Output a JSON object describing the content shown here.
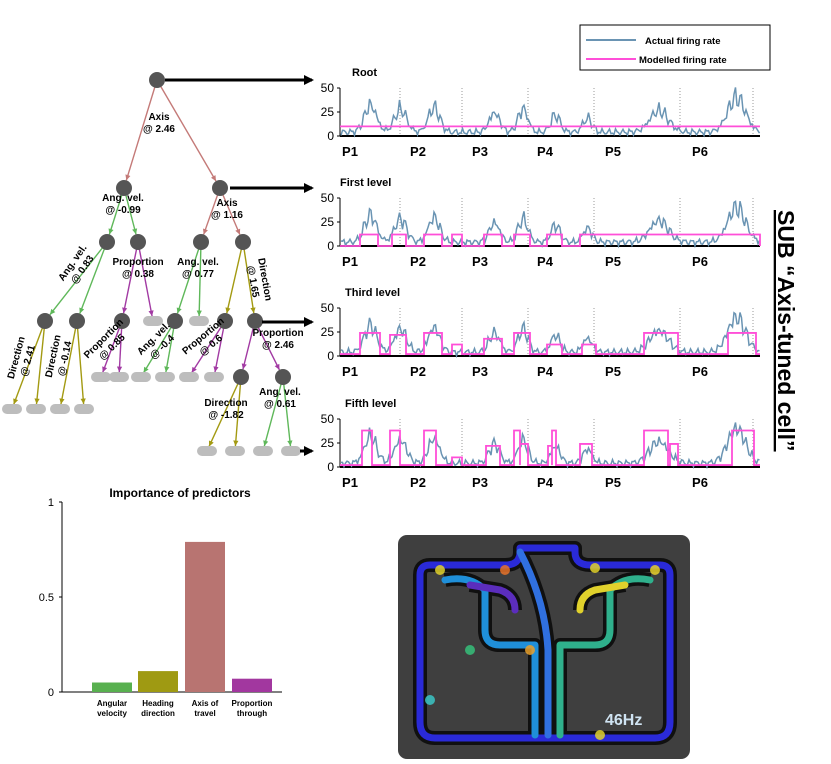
{
  "colors": {
    "actual": "#6a94b3",
    "modelled": "#ff4fd8",
    "axis_edge": "#c47a78",
    "angvel_edge": "#5fb85a",
    "direction_edge": "#a39a12",
    "proportion_edge": "#a23aa3",
    "node": "#555555",
    "leaf": "#bdbdbd",
    "bar_angular": "#58b04f",
    "bar_heading": "#9f9a12",
    "bar_axis": "#b87471",
    "bar_proportion": "#a2379f",
    "map_bg": "#3f3f3f"
  },
  "tree": {
    "root_split": "Axis\n@ 2.46",
    "split_left": "Ang. vel.\n@ -0.99",
    "split_right": "Axis\n@ 1.16",
    "split_ll": "Ang. vel.\n@ 0.83",
    "split_lr": "Proportion\n@ 0.38",
    "split_rl": "Ang. vel.\n@ 0.77",
    "split_rr": "Direction\n@ 1.65",
    "split_lll": "Direction\n@ 2.41",
    "split_llr": "Direction\n@ -0.14",
    "split_lrl": "Proportion\n@ 0.85",
    "split_rll": "Ang. vel.\n@ -0.4",
    "split_rrl": "Proportion\n@ 0.6",
    "split_rrr": "Proportion\n@ 2.46",
    "split_d1": "Direction\n@ -1.82",
    "split_d2": "Ang. vel.\n@ 0.61"
  },
  "legend": {
    "actual": "Actual firing rate",
    "modelled": "Modelled firing rate"
  },
  "panels": [
    {
      "title": "Root",
      "yticks": [
        "50",
        "25",
        "0"
      ],
      "periods": [
        "P1",
        "P2",
        "P3",
        "P4",
        "P5",
        "P6"
      ]
    },
    {
      "title": "First level",
      "yticks": [
        "50",
        "25",
        "0"
      ],
      "periods": [
        "P1",
        "P2",
        "P3",
        "P4",
        "P5",
        "P6"
      ]
    },
    {
      "title": "Third level",
      "yticks": [
        "50",
        "25",
        "0"
      ],
      "periods": [
        "P1",
        "P2",
        "P3",
        "P4",
        "P5",
        "P6"
      ]
    },
    {
      "title": "Fifth level",
      "yticks": [
        "50",
        "25",
        "0"
      ],
      "periods": [
        "P1",
        "P2",
        "P3",
        "P4",
        "P5",
        "P6"
      ]
    }
  ],
  "side_title": "SUB “Axis-tuned cell”",
  "importance": {
    "title": "Importance of predictors",
    "yticks": [
      "1",
      "0.5",
      "0"
    ],
    "ylim": [
      0,
      1
    ],
    "categories": [
      "Angular\nvelocity",
      "Heading\ndirection",
      "Axis of\ntravel",
      "Proportion\nthrough"
    ],
    "values": [
      0.05,
      0.11,
      0.79,
      0.07
    ]
  },
  "map": {
    "rate_label": "46Hz"
  }
}
